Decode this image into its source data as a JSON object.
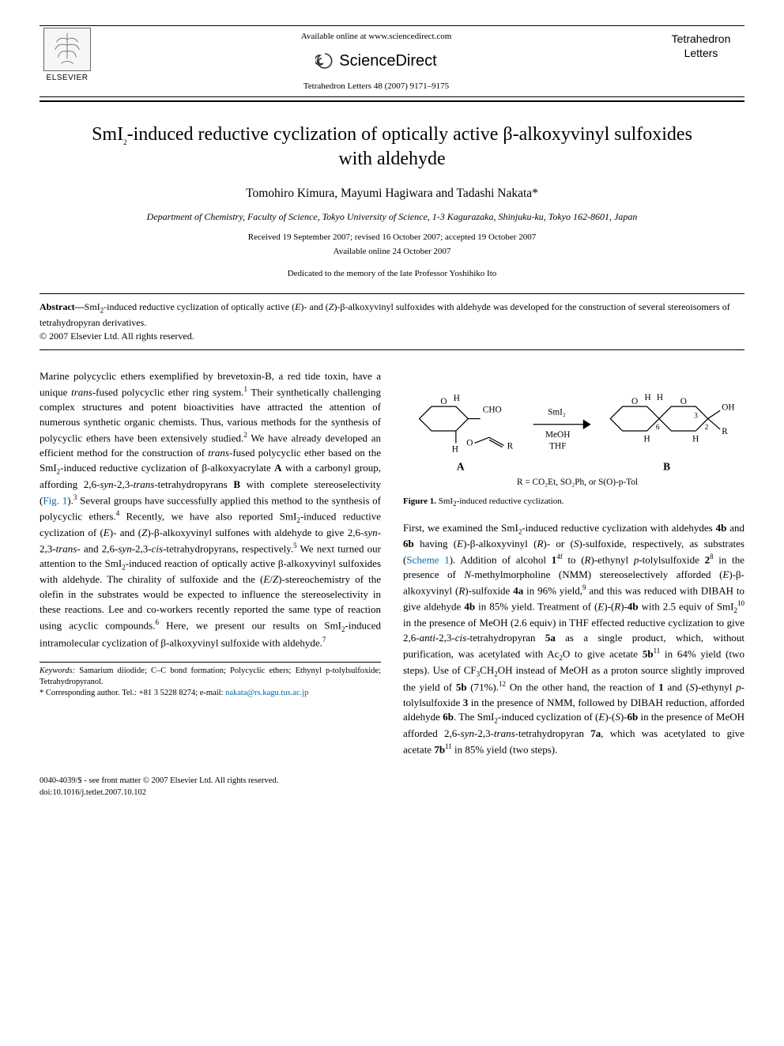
{
  "header": {
    "elsevier_label": "ELSEVIER",
    "available_text": "Available online at www.sciencedirect.com",
    "sd_brand": "ScienceDirect",
    "journal_ref": "Tetrahedron Letters 48 (2007) 9171–9175",
    "journal_name_l1": "Tetrahedron",
    "journal_name_l2": "Letters"
  },
  "title_html": "SmI<sub>2</sub>-induced reductive cyclization of optically active β-alkoxyvinyl sulfoxides with aldehyde",
  "authors": "Tomohiro Kimura, Mayumi Hagiwara and Tadashi Nakata*",
  "affiliation": "Department of Chemistry, Faculty of Science, Tokyo University of Science, 1-3 Kagurazaka, Shinjuku-ku, Tokyo 162-8601, Japan",
  "dates_l1": "Received 19 September 2007; revised 16 October 2007; accepted 19 October 2007",
  "dates_l2": "Available online 24 October 2007",
  "dedication": "Dedicated to the memory of the late Professor Yoshihiko Ito",
  "abstract": {
    "label": "Abstract—",
    "body_html": "SmI<sub>2</sub>-induced reductive cyclization of optically active (<span class=\"italic\">E</span>)- and (<span class=\"italic\">Z</span>)-β-alkoxyvinyl sulfoxides with aldehyde was developed for the construction of several stereoisomers of tetrahydropyran derivatives.",
    "copyright": "© 2007 Elsevier Ltd. All rights reserved."
  },
  "left_column_html": "Marine polycyclic ethers exemplified by brevetoxin-B, a red tide toxin, have a unique <span class=\"italic\">trans</span>-fused polycyclic ether ring system.<sup>1</sup> Their synthetically challenging complex structures and potent bioactivities have attracted the attention of numerous synthetic organic chemists. Thus, various methods for the synthesis of polycyclic ethers have been extensively studied.<sup>2</sup> We have already developed an efficient method for the construction of <span class=\"italic\">trans</span>-fused polycyclic ether based on the SmI<sub>2</sub>-induced reductive cyclization of β-alkoxyacrylate <span class=\"bold\">A</span> with a carbonyl group, affording 2,6-<span class=\"italic\">syn</span>-2,3-<span class=\"italic\">trans</span>-tetrahydropyrans <span class=\"bold\">B</span> with complete stereoselectivity (<span class=\"link\">Fig. 1</span>).<sup>3</sup> Several groups have successfully applied this method to the synthesis of polycyclic ethers.<sup>4</sup> Recently, we have also reported SmI<sub>2</sub>-induced reductive cyclization of (<span class=\"italic\">E</span>)- and (<span class=\"italic\">Z</span>)-β-alkoxyvinyl sulfones with aldehyde to give 2,6-<span class=\"italic\">syn</span>-2,3-<span class=\"italic\">trans</span>- and 2,6-<span class=\"italic\">syn</span>-2,3-<span class=\"italic\">cis</span>-tetrahydropyrans, respectively.<sup>5</sup> We next turned our attention to the SmI<sub>2</sub>-induced reaction of optically active β-alkoxyvinyl sulfoxides with aldehyde. The chirality of sulfoxide and the (<span class=\"italic\">E</span>/<span class=\"italic\">Z</span>)-stereochemistry of the olefin in the substrates would be expected to influence the stereoselectivity in these reactions. Lee and co-workers recently reported the same type of reaction using acyclic compounds.<sup>6</sup> Here, we present our results on SmI<sub>2</sub>-induced intramolecular cyclization of β-alkoxyvinyl sulfoxide with aldehyde.<sup>7</sup>",
  "figure1": {
    "label_A": "A",
    "label_B": "B",
    "reagent_top": "SmI₂",
    "reagent_mid": "MeOH",
    "reagent_bot": "THF",
    "r_def": "R = CO₂Et,  SO₂Ph, or S(O)-p-Tol",
    "caption_html": "<b>Figure 1.</b> SmI<sub>2</sub>-induced reductive cyclization.",
    "atoms": {
      "A_labels": [
        "O",
        "O",
        "CHO",
        "R",
        "H",
        "H"
      ],
      "B_labels": [
        "O",
        "O",
        "OH",
        "R",
        "H",
        "H",
        "H",
        "H"
      ],
      "B_numbers": [
        "6",
        "3",
        "2"
      ]
    },
    "colors": {
      "stroke": "#000000",
      "text": "#000000",
      "bg": "#ffffff"
    },
    "line_width": 1.2,
    "font_size_labels": 11,
    "font_size_bold": 13
  },
  "right_column_html": "First, we examined the SmI<sub>2</sub>-induced reductive cyclization with aldehydes <span class=\"bold\">4b</span> and <span class=\"bold\">6b</span> having (<span class=\"italic\">E</span>)-β-alkoxyvinyl (<span class=\"italic\">R</span>)- or (<span class=\"italic\">S</span>)-sulfoxide, respectively, as substrates (<span class=\"link\">Scheme 1</span>). Addition of alcohol <span class=\"bold\">1</span><sup>4f</sup> to (<span class=\"italic\">R</span>)-ethynyl <span class=\"italic\">p</span>-tolylsulfoxide <span class=\"bold\">2</span><sup>8</sup> in the presence of <span class=\"italic\">N</span>-methylmorpholine (NMM) stereoselectively afforded (<span class=\"italic\">E</span>)-β-alkoxyvinyl (<span class=\"italic\">R</span>)-sulfoxide <span class=\"bold\">4a</span> in 96% yield,<sup>9</sup> and this was reduced with DIBAH to give aldehyde <span class=\"bold\">4b</span> in 85% yield. Treatment of (<span class=\"italic\">E</span>)-(<span class=\"italic\">R</span>)-<span class=\"bold\">4b</span> with 2.5 equiv of SmI<sub>2</sub><sup>10</sup> in the presence of MeOH (2.6 equiv) in THF effected reductive cyclization to give 2,6-<span class=\"italic\">anti</span>-2,3-<span class=\"italic\">cis</span>-tetrahydropyran <span class=\"bold\">5a</span> as a single product, which, without purification, was acetylated with Ac<sub>2</sub>O to give acetate <span class=\"bold\">5b</span><sup>11</sup> in 64% yield (two steps). Use of CF<sub>3</sub>CH<sub>2</sub>OH instead of MeOH as a proton source slightly improved the yield of <span class=\"bold\">5b</span> (71%).<sup>12</sup> On the other hand, the reaction of <span class=\"bold\">1</span> and (<span class=\"italic\">S</span>)-ethynyl <span class=\"italic\">p</span>-tolylsulfoxide <span class=\"bold\">3</span> in the presence of NMM, followed by DIBAH reduction, afforded aldehyde <span class=\"bold\">6b</span>. The SmI<sub>2</sub>-induced cyclization of (<span class=\"italic\">E</span>)-(<span class=\"italic\">S</span>)-<span class=\"bold\">6b</span> in the presence of MeOH afforded 2,6-<span class=\"italic\">syn</span>-2,3-<span class=\"italic\">trans</span>-tetrahydropyran <span class=\"bold\">7a</span>, which was acetylated to give acetate <span class=\"bold\">7b</span><sup>11</sup> in 85% yield (two steps).",
  "footnotes": {
    "keywords_label": "Keywords:",
    "keywords": " Samarium diiodide; C–C bond formation; Polycyclic ethers; Ethynyl p-tolylsulfoxide; Tetrahydropyranol.",
    "corresp_html": "* Corresponding author. Tel.: +81 3 5228 8274; e-mail: <span class=\"link\">nakata@rs.kagu.tus.ac.jp</span>"
  },
  "footer": {
    "left_l1": "0040-4039/$ - see front matter © 2007 Elsevier Ltd. All rights reserved.",
    "left_l2": "doi:10.1016/j.tetlet.2007.10.102"
  },
  "colors": {
    "text": "#000000",
    "link": "#0066aa",
    "bg": "#ffffff",
    "rule": "#000000"
  }
}
